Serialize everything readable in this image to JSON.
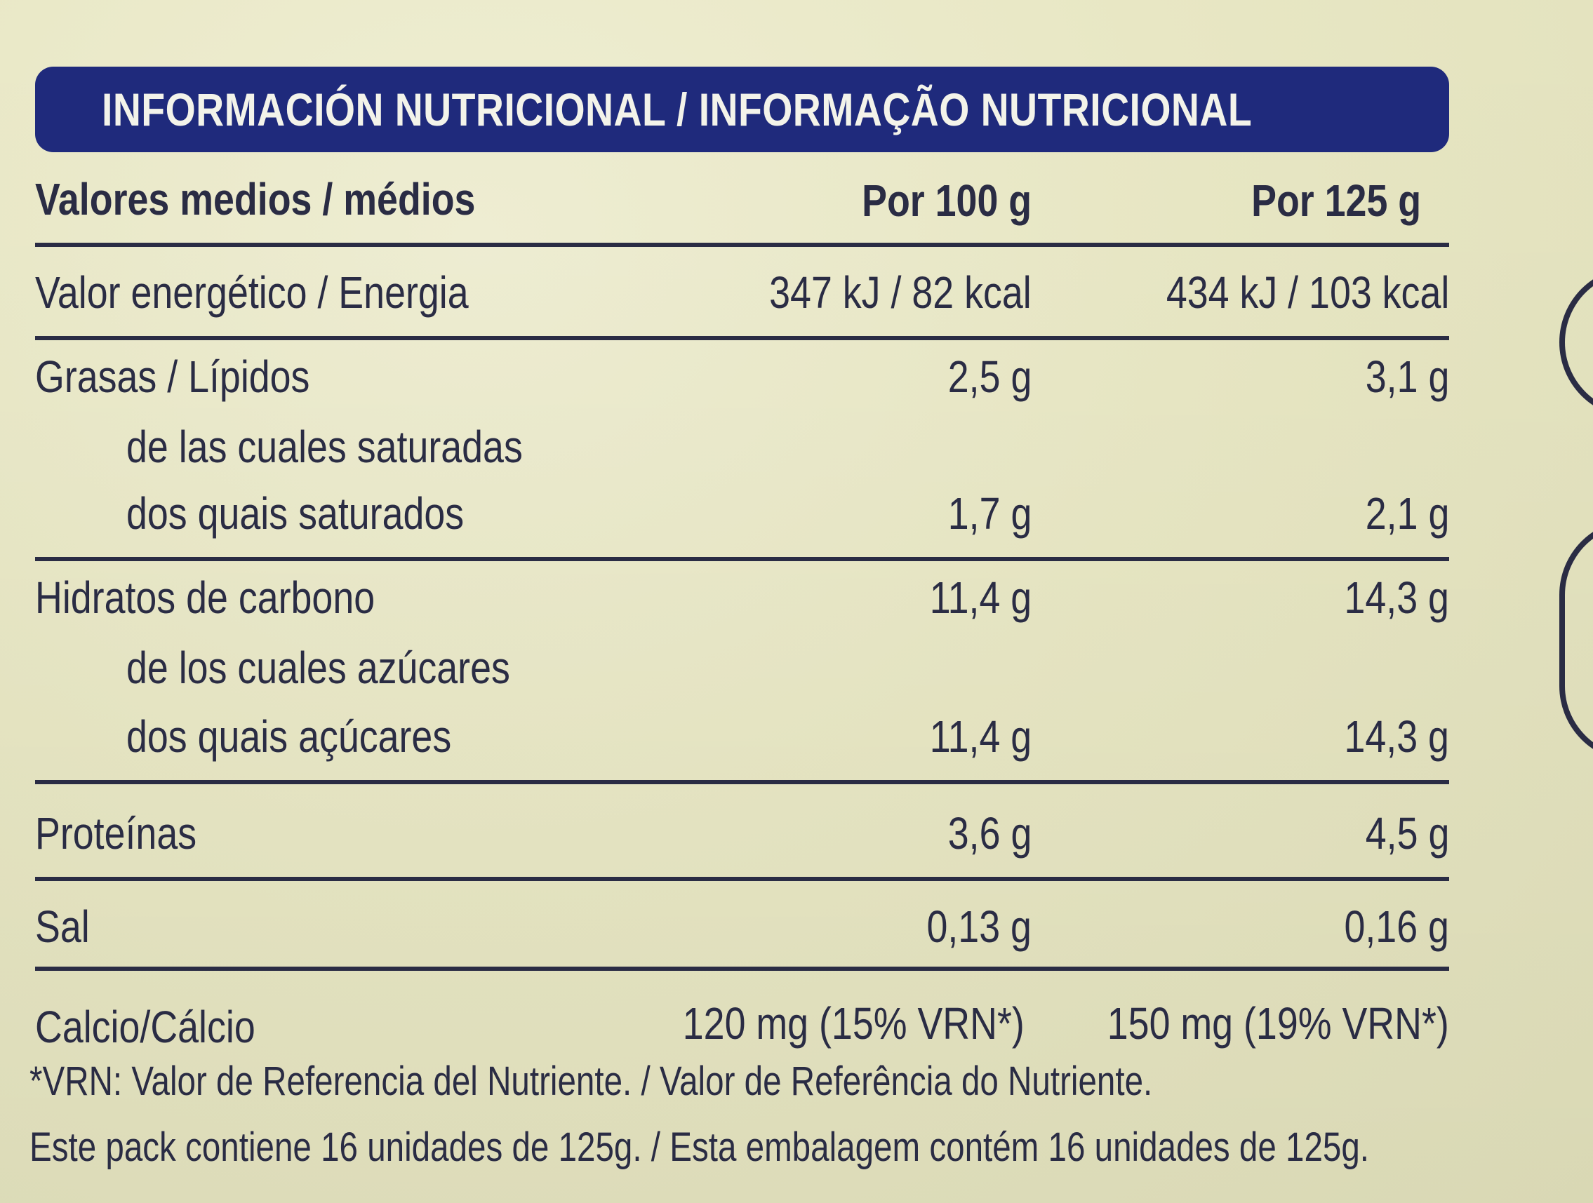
{
  "title": "INFORMACIÓN NUTRICIONAL / INFORMAÇÃO NUTRICIONAL",
  "header": {
    "label": "Valores medios / médios",
    "per100": "Por 100 g",
    "per125": "Por 125 g"
  },
  "rows": [
    {
      "label": "Valor energético / Energia",
      "per100": "347 kJ / 82 kcal",
      "per125": "434 kJ / 103 kcal"
    },
    {
      "label": "Grasas / Lípidos",
      "per100": "2,5 g",
      "per125": "3,1 g"
    },
    {
      "label": "de las cuales saturadas"
    },
    {
      "label": "dos quais saturados",
      "per100": "1,7 g",
      "per125": "2,1 g"
    },
    {
      "label": "Hidratos de carbono",
      "per100": "11,4 g",
      "per125": "14,3 g"
    },
    {
      "label": "de los cuales azúcares"
    },
    {
      "label": "dos quais açúcares",
      "per100": "11,4 g",
      "per125": "14,3 g"
    },
    {
      "label": "Proteínas",
      "per100": "3,6 g",
      "per125": "4,5 g"
    },
    {
      "label": "Sal",
      "per100": "0,13 g",
      "per125": "0,16 g"
    },
    {
      "label": "Calcio/Cálcio",
      "per100": "120 mg (15% VRN*)",
      "per125": "150 mg (19% VRN*)"
    }
  ],
  "footnotes": {
    "vrn": "*VRN: Valor de Referencia del Nutriente. / Valor de Referência do Nutriente.",
    "pack": "Este pack contiene 16 unidades de 125g. / Esta embalagem contém 16 unidades de 125g."
  },
  "colors": {
    "title_bar": "#1f2a7c",
    "text": "#2a2c44",
    "background": "#e9e8c6"
  }
}
